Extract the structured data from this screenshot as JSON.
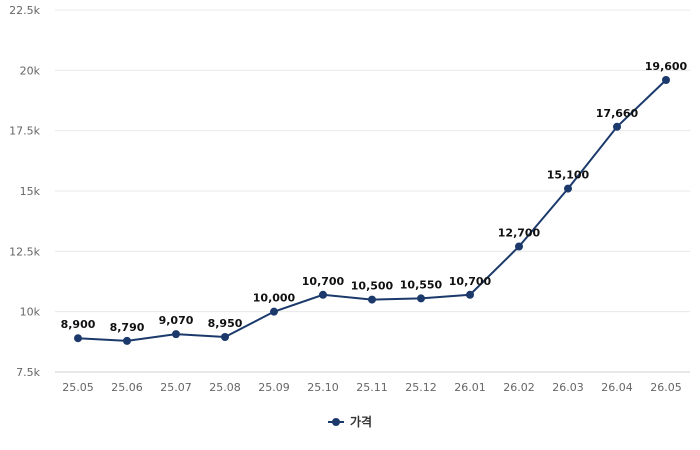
{
  "chart_data": {
    "type": "line",
    "categories": [
      "25.05",
      "25.06",
      "25.07",
      "25.08",
      "25.09",
      "25.10",
      "25.11",
      "25.12",
      "26.01",
      "26.02",
      "26.03",
      "26.04",
      "26.05"
    ],
    "series": [
      {
        "name": "가격",
        "values": [
          8900,
          8790,
          9070,
          8950,
          10000,
          10700,
          10500,
          10550,
          10700,
          12700,
          15100,
          17660,
          19600
        ],
        "labels": [
          "8,900",
          "8,790",
          "9,070",
          "8,950",
          "10,000",
          "10,700",
          "10,500",
          "10,550",
          "10,700",
          "12,700",
          "15,100",
          "17,660",
          "19,600"
        ],
        "color": "#1b3a6b"
      }
    ],
    "title": "",
    "xlabel": "",
    "ylabel": "",
    "ylim": [
      7500,
      22500
    ],
    "yticks": [
      7500,
      10000,
      12500,
      15000,
      17500,
      20000,
      22500
    ],
    "ytick_labels": [
      "7.5k",
      "10k",
      "12.5k",
      "15k",
      "17.5k",
      "20k",
      "22.5k"
    ],
    "grid": true,
    "legend": "bottom-center"
  }
}
